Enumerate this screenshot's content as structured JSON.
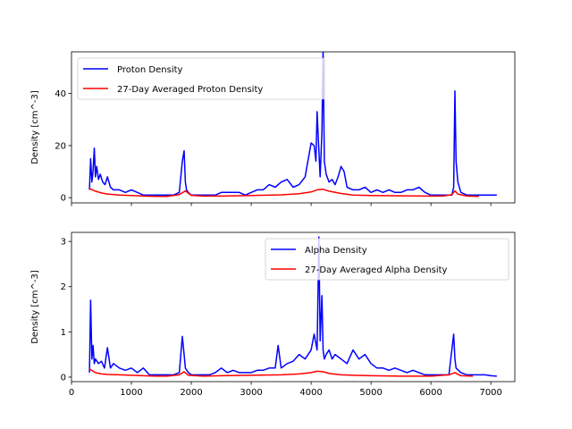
{
  "chart_data": [
    {
      "type": "line",
      "ylabel": "Density [cm^-3]",
      "xlim": [
        0,
        7400
      ],
      "ylim": [
        -2,
        56
      ],
      "yticks": [
        0,
        20,
        40
      ],
      "xticks": [
        0,
        1000,
        2000,
        3000,
        4000,
        5000,
        6000,
        7000
      ],
      "show_x_tick_labels": false,
      "legend_position": "upper-left",
      "colors": {
        "raw": "#0000ff",
        "avg": "#ff0000"
      },
      "series": [
        {
          "name": "Proton Density",
          "x": [
            300,
            320,
            340,
            360,
            380,
            400,
            420,
            450,
            480,
            520,
            560,
            600,
            650,
            700,
            800,
            900,
            1000,
            1100,
            1200,
            1300,
            1400,
            1500,
            1600,
            1700,
            1800,
            1850,
            1880,
            1900,
            1920,
            1950,
            2000,
            2100,
            2200,
            2300,
            2400,
            2500,
            2600,
            2700,
            2800,
            2900,
            3000,
            3100,
            3200,
            3300,
            3400,
            3500,
            3600,
            3700,
            3800,
            3900,
            4000,
            4050,
            4080,
            4100,
            4130,
            4150,
            4180,
            4200,
            4220,
            4250,
            4300,
            4350,
            4400,
            4450,
            4500,
            4550,
            4600,
            4700,
            4800,
            4900,
            5000,
            5100,
            5200,
            5300,
            5400,
            5500,
            5600,
            5700,
            5800,
            5900,
            6000,
            6100,
            6200,
            6300,
            6350,
            6380,
            6400,
            6420,
            6450,
            6500,
            6600,
            6700,
            6800,
            6900,
            7000,
            7100
          ],
          "y": [
            3,
            15,
            6,
            10,
            19,
            8,
            12,
            7,
            9,
            6,
            5,
            8,
            4,
            3,
            3,
            2,
            3,
            2,
            1,
            1,
            1,
            1,
            1,
            1,
            2,
            14,
            18,
            6,
            3,
            2,
            1,
            1,
            1,
            1,
            1,
            2,
            2,
            2,
            2,
            1,
            2,
            3,
            3,
            5,
            4,
            6,
            7,
            4,
            5,
            8,
            21,
            20,
            14,
            33,
            18,
            8,
            25,
            57,
            14,
            9,
            6,
            7,
            5,
            8,
            12,
            10,
            4,
            3,
            3,
            4,
            2,
            3,
            2,
            3,
            2,
            2,
            3,
            3,
            4,
            2,
            1,
            1,
            1,
            1,
            1,
            4,
            41,
            14,
            6,
            2,
            1,
            1,
            1,
            1,
            1,
            1
          ]
        },
        {
          "name": "27-Day Averaged Proton Density",
          "x": [
            300,
            400,
            500,
            600,
            800,
            1000,
            1200,
            1400,
            1600,
            1800,
            1900,
            2000,
            2200,
            2500,
            3000,
            3500,
            3800,
            4000,
            4100,
            4200,
            4300,
            4500,
            4700,
            5000,
            5500,
            6000,
            6200,
            6350,
            6400,
            6450,
            6600,
            6800
          ],
          "y": [
            3.5,
            2.5,
            1.8,
            1.4,
            1.0,
            0.8,
            0.6,
            0.5,
            0.5,
            1.2,
            2.6,
            0.9,
            0.6,
            0.6,
            0.8,
            1.1,
            1.5,
            2.2,
            3.0,
            3.2,
            2.5,
            1.6,
            1.0,
            0.8,
            0.7,
            0.6,
            0.6,
            1.2,
            2.6,
            1.4,
            0.6,
            0.5
          ]
        }
      ]
    },
    {
      "type": "line",
      "xlabel": "",
      "ylabel": "Density [cm^-3]",
      "xlim": [
        0,
        7400
      ],
      "ylim": [
        -0.1,
        3.2
      ],
      "yticks": [
        0,
        1,
        2,
        3
      ],
      "xticks": [
        0,
        1000,
        2000,
        3000,
        4000,
        5000,
        6000,
        7000
      ],
      "show_x_tick_labels": true,
      "legend_position": "upper-right",
      "colors": {
        "raw": "#0000ff",
        "avg": "#ff0000"
      },
      "series": [
        {
          "name": "Alpha Density",
          "x": [
            300,
            320,
            340,
            360,
            380,
            400,
            450,
            500,
            550,
            600,
            650,
            700,
            800,
            900,
            1000,
            1100,
            1200,
            1300,
            1400,
            1500,
            1600,
            1700,
            1800,
            1850,
            1880,
            1900,
            1950,
            2000,
            2100,
            2200,
            2300,
            2400,
            2500,
            2600,
            2700,
            2800,
            2900,
            3000,
            3100,
            3200,
            3300,
            3400,
            3450,
            3500,
            3600,
            3700,
            3800,
            3900,
            4000,
            4050,
            4100,
            4130,
            4150,
            4180,
            4200,
            4220,
            4250,
            4300,
            4350,
            4400,
            4500,
            4600,
            4700,
            4800,
            4900,
            5000,
            5100,
            5200,
            5300,
            5400,
            5500,
            5600,
            5700,
            5800,
            5900,
            6000,
            6100,
            6200,
            6300,
            6380,
            6400,
            6420,
            6500,
            6600,
            6700,
            6800,
            6900,
            7000,
            7100
          ],
          "y": [
            0.1,
            1.7,
            0.4,
            0.7,
            0.3,
            0.4,
            0.3,
            0.35,
            0.2,
            0.65,
            0.2,
            0.3,
            0.2,
            0.15,
            0.2,
            0.1,
            0.2,
            0.05,
            0.05,
            0.05,
            0.05,
            0.05,
            0.1,
            0.9,
            0.5,
            0.2,
            0.1,
            0.05,
            0.05,
            0.05,
            0.05,
            0.1,
            0.2,
            0.1,
            0.15,
            0.1,
            0.1,
            0.1,
            0.15,
            0.15,
            0.2,
            0.2,
            0.7,
            0.2,
            0.3,
            0.35,
            0.5,
            0.4,
            0.6,
            0.95,
            0.6,
            3.1,
            0.8,
            1.8,
            0.6,
            0.4,
            0.5,
            0.6,
            0.4,
            0.5,
            0.4,
            0.3,
            0.6,
            0.4,
            0.5,
            0.3,
            0.2,
            0.2,
            0.15,
            0.2,
            0.15,
            0.1,
            0.15,
            0.1,
            0.05,
            0.05,
            0.05,
            0.05,
            0.05,
            0.95,
            0.4,
            0.2,
            0.1,
            0.05,
            0.05,
            0.05,
            0.05,
            0.03,
            0.02
          ]
        },
        {
          "name": "27-Day Averaged Alpha Density",
          "x": [
            300,
            400,
            500,
            600,
            800,
            1000,
            1200,
            1400,
            1600,
            1800,
            1880,
            1950,
            2200,
            2500,
            3000,
            3500,
            3800,
            4000,
            4100,
            4200,
            4300,
            4500,
            4700,
            5000,
            5500,
            6000,
            6300,
            6400,
            6500,
            6700
          ],
          "y": [
            0.18,
            0.1,
            0.07,
            0.06,
            0.05,
            0.04,
            0.03,
            0.02,
            0.02,
            0.05,
            0.12,
            0.04,
            0.02,
            0.03,
            0.04,
            0.05,
            0.07,
            0.1,
            0.13,
            0.12,
            0.08,
            0.05,
            0.04,
            0.03,
            0.02,
            0.02,
            0.05,
            0.1,
            0.03,
            0.02
          ]
        }
      ]
    }
  ]
}
